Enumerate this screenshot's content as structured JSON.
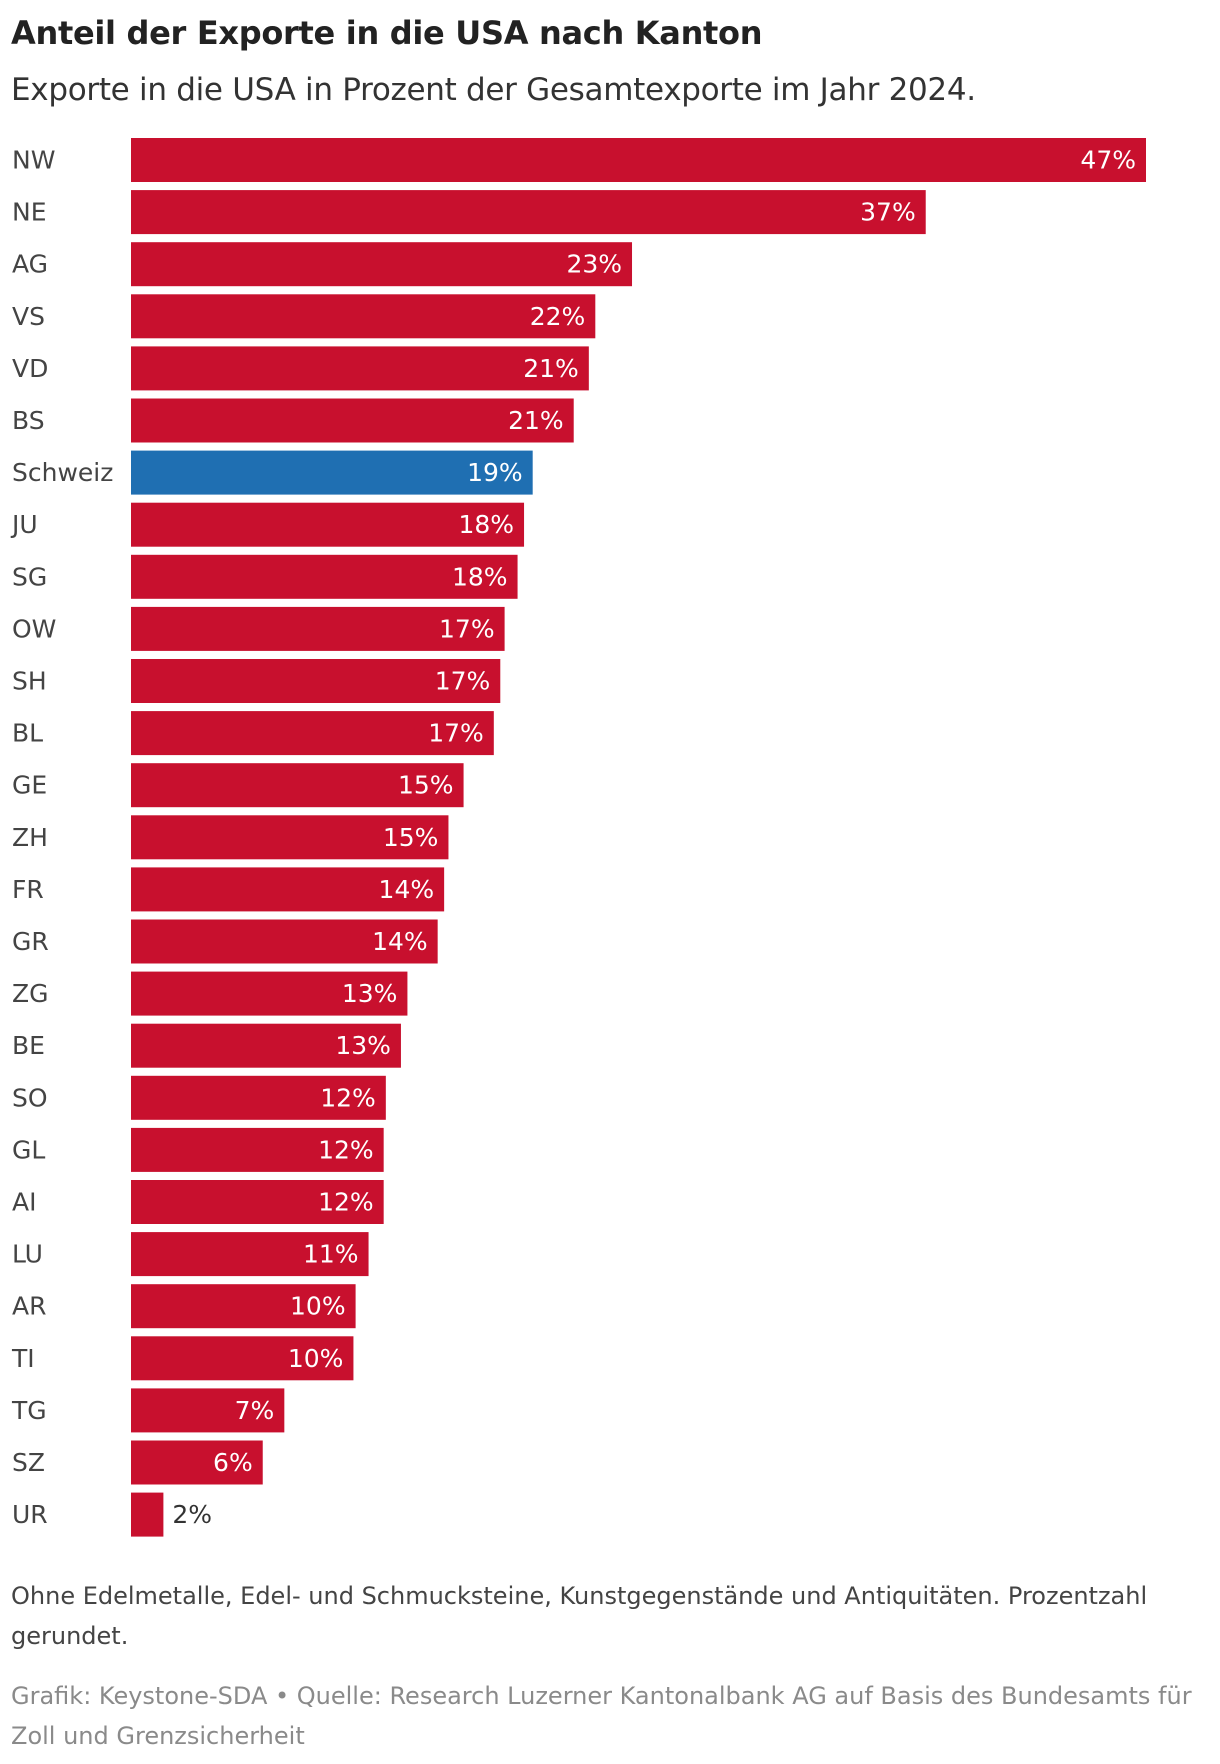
{
  "header": {
    "title": "Anteil der Exporte in die USA nach Kanton",
    "subtitle": "Exporte in die USA in Prozent der Gesamtexporte im Jahr 2024."
  },
  "footer": {
    "note": "Ohne Edelmetalle, Edel- und Schmucksteine, Kunstgegenstände und Antiquitäten. Prozentzahl gerundet.",
    "source": "Grafik: Keystone-SDA • Quelle: Research Luzerner Kantonalbank AG auf Basis des Bundesamts für Zoll und Grenzsicherheit"
  },
  "colors": {
    "bar": "#c8102e",
    "highlight": "#1f6fb2",
    "label_inside": "#ffffff",
    "label_outside": "#333333"
  },
  "chart_data": {
    "type": "bar",
    "orientation": "horizontal",
    "title": "Anteil der Exporte in die USA nach Kanton",
    "subtitle": "Exporte in die USA in Prozent der Gesamtexporte im Jahr 2024.",
    "xlabel": "",
    "ylabel": "",
    "unit": "%",
    "xlim": [
      0,
      47
    ],
    "grid": false,
    "legend": "none",
    "highlight_category": "Schweiz",
    "categories": [
      "NW",
      "NE",
      "AG",
      "VS",
      "VD",
      "BS",
      "Schweiz",
      "JU",
      "SG",
      "OW",
      "SH",
      "BL",
      "GE",
      "ZH",
      "FR",
      "GR",
      "ZG",
      "BE",
      "SO",
      "GL",
      "AI",
      "LU",
      "AR",
      "TI",
      "TG",
      "SZ",
      "UR"
    ],
    "values": [
      47,
      36.8,
      23.2,
      21.5,
      21.2,
      20.5,
      18.6,
      18.2,
      17.9,
      17.3,
      17.1,
      16.8,
      15.4,
      14.7,
      14.5,
      14.2,
      12.8,
      12.5,
      11.8,
      11.7,
      11.7,
      11,
      10.4,
      10.3,
      7.1,
      6.1,
      1.5
    ],
    "labels": [
      "47%",
      "37%",
      "23%",
      "22%",
      "21%",
      "21%",
      "19%",
      "18%",
      "18%",
      "17%",
      "17%",
      "17%",
      "15%",
      "15%",
      "14%",
      "14%",
      "13%",
      "13%",
      "12%",
      "12%",
      "12%",
      "11%",
      "10%",
      "10%",
      "7%",
      "6%",
      "2%"
    ]
  }
}
